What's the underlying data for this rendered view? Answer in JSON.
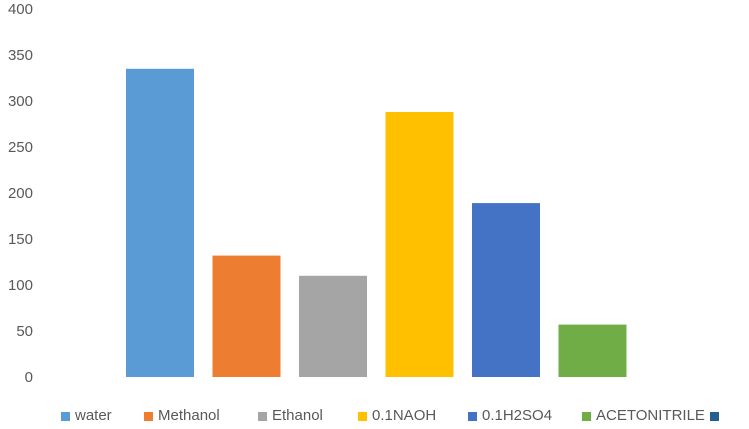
{
  "chart_data": {
    "type": "bar",
    "title": "",
    "xlabel": "",
    "ylabel": "",
    "ylim": [
      0,
      400
    ],
    "yticks": [
      "0",
      "50",
      "100",
      "150",
      "200",
      "250",
      "300",
      "350",
      "400"
    ],
    "grid": false,
    "legend_position": "bottom",
    "series": [
      {
        "name": "water",
        "value": 335,
        "color": "#5b9bd5"
      },
      {
        "name": "Methanol",
        "value": 132,
        "color": "#ed7d31"
      },
      {
        "name": "Ethanol",
        "value": 110,
        "color": "#a5a5a5"
      },
      {
        "name": "0.1NAOH",
        "value": 288,
        "color": "#ffc000"
      },
      {
        "name": "0.1H2SO4",
        "value": 189,
        "color": "#4472c4"
      },
      {
        "name": "ACETONITRILE",
        "value": 57,
        "color": "#70ad47"
      },
      {
        "name": "",
        "value": 0,
        "color": "#255e91"
      }
    ]
  }
}
